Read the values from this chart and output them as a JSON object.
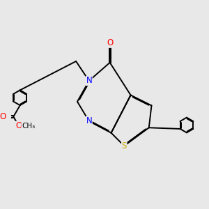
{
  "background_color": "#e8e8e8",
  "atom_colors": {
    "N": "#0000ff",
    "O": "#ff0000",
    "S": "#ccaa00",
    "C": "#000000"
  },
  "bond_color": "#000000",
  "bond_lw": 1.4,
  "font_size": 8.5,
  "font_size_small": 7.5,
  "bl": 0.36
}
